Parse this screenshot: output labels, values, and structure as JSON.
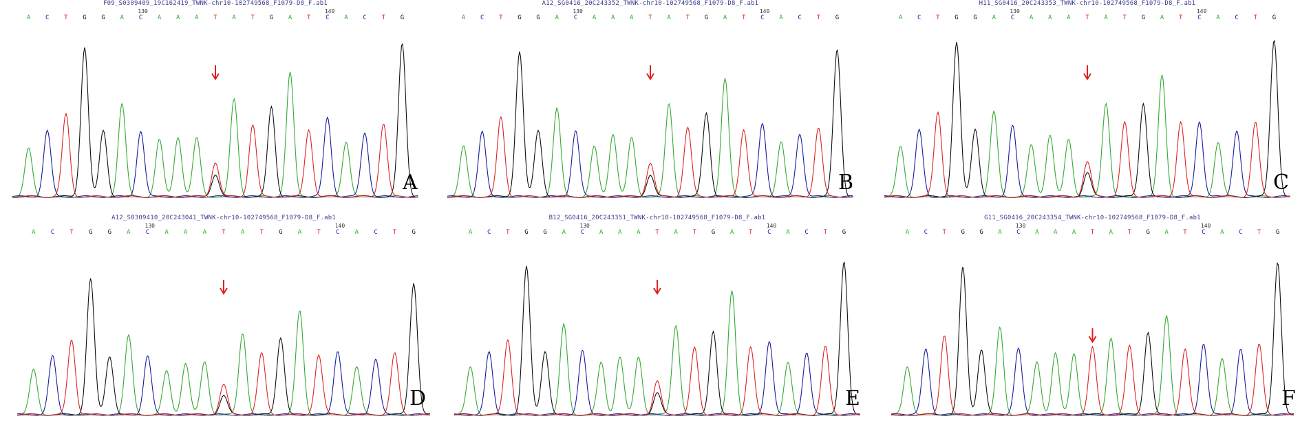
{
  "colors": {
    "A": "#33aa33",
    "C": "#1a1aa0",
    "G": "#111111",
    "T": "#dd2222",
    "arrow": "#e02020"
  },
  "tick_labels": [
    "130",
    "140"
  ],
  "chart_data": [
    {
      "type": "line",
      "title": "F09_S0309409_19C162419_TWNK-chr10-102749568_F1079-D8_F.ab1",
      "label": "A",
      "bases": [
        "A",
        "C",
        "T",
        "G",
        "G",
        "A",
        "C",
        "A",
        "A",
        "A",
        "T",
        "A",
        "T",
        "G",
        "A",
        "T",
        "C",
        "A",
        "C",
        "T",
        "G"
      ],
      "peaks": [
        {
          "b": "A",
          "h": 0.32
        },
        {
          "b": "C",
          "h": 0.44
        },
        {
          "b": "T",
          "h": 0.55
        },
        {
          "b": "G",
          "h": 1.0
        },
        {
          "b": "G",
          "h": 0.44
        },
        {
          "b": "A",
          "h": 0.62
        },
        {
          "b": "C",
          "h": 0.44
        },
        {
          "b": "A",
          "h": 0.38
        },
        {
          "b": "A",
          "h": 0.4
        },
        {
          "b": "A",
          "h": 0.39
        },
        {
          "b": "T",
          "h": 0.23,
          "g": 0.15
        },
        {
          "b": "A",
          "h": 0.65
        },
        {
          "b": "T",
          "h": 0.48
        },
        {
          "b": "G",
          "h": 0.6
        },
        {
          "b": "A",
          "h": 0.83
        },
        {
          "b": "T",
          "h": 0.45
        },
        {
          "b": "C",
          "h": 0.53
        },
        {
          "b": "A",
          "h": 0.37
        },
        {
          "b": "C",
          "h": 0.43
        },
        {
          "b": "T",
          "h": 0.49
        },
        {
          "b": "G",
          "h": 1.02
        }
      ],
      "arrow_index": 10
    },
    {
      "type": "line",
      "title": "A12_SG0416_20C243352_TWNK-chr10-102749568_F1079-D8_F.ab1",
      "label": "B",
      "bases": [
        "A",
        "C",
        "T",
        "G",
        "G",
        "A",
        "C",
        "A",
        "A",
        "A",
        "T",
        "A",
        "T",
        "G",
        "A",
        "T",
        "C",
        "A",
        "C",
        "T",
        "G"
      ],
      "peaks": [
        {
          "b": "A",
          "h": 0.34
        },
        {
          "b": "C",
          "h": 0.44
        },
        {
          "b": "T",
          "h": 0.54
        },
        {
          "b": "G",
          "h": 0.99
        },
        {
          "b": "G",
          "h": 0.45
        },
        {
          "b": "A",
          "h": 0.6
        },
        {
          "b": "C",
          "h": 0.45
        },
        {
          "b": "A",
          "h": 0.34
        },
        {
          "b": "A",
          "h": 0.43
        },
        {
          "b": "A",
          "h": 0.4
        },
        {
          "b": "T",
          "h": 0.23,
          "g": 0.15
        },
        {
          "b": "A",
          "h": 0.63
        },
        {
          "b": "T",
          "h": 0.47
        },
        {
          "b": "G",
          "h": 0.57
        },
        {
          "b": "A",
          "h": 0.8
        },
        {
          "b": "T",
          "h": 0.46
        },
        {
          "b": "C",
          "h": 0.5
        },
        {
          "b": "A",
          "h": 0.38
        },
        {
          "b": "C",
          "h": 0.43
        },
        {
          "b": "T",
          "h": 0.47
        },
        {
          "b": "G",
          "h": 1.0
        }
      ],
      "arrow_index": 10
    },
    {
      "type": "line",
      "title": "H11_SG0416_20C243353_TWNK-chr10-102749568_F1079-D8_F.ab1",
      "label": "C",
      "bases": [
        "A",
        "C",
        "T",
        "G",
        "G",
        "A",
        "C",
        "A",
        "A",
        "A",
        "T",
        "A",
        "T",
        "G",
        "A",
        "T",
        "C",
        "A",
        "C",
        "T",
        "G"
      ],
      "peaks": [
        {
          "b": "A",
          "h": 0.33
        },
        {
          "b": "C",
          "h": 0.44
        },
        {
          "b": "T",
          "h": 0.56
        },
        {
          "b": "G",
          "h": 1.02
        },
        {
          "b": "G",
          "h": 0.45
        },
        {
          "b": "A",
          "h": 0.56
        },
        {
          "b": "C",
          "h": 0.47
        },
        {
          "b": "A",
          "h": 0.34
        },
        {
          "b": "A",
          "h": 0.41
        },
        {
          "b": "A",
          "h": 0.38
        },
        {
          "b": "T",
          "h": 0.23,
          "g": 0.16
        },
        {
          "b": "A",
          "h": 0.62
        },
        {
          "b": "T",
          "h": 0.49
        },
        {
          "b": "G",
          "h": 0.62
        },
        {
          "b": "A",
          "h": 0.8
        },
        {
          "b": "T",
          "h": 0.5
        },
        {
          "b": "C",
          "h": 0.5
        },
        {
          "b": "A",
          "h": 0.36
        },
        {
          "b": "C",
          "h": 0.44
        },
        {
          "b": "T",
          "h": 0.49
        },
        {
          "b": "G",
          "h": 1.04
        }
      ],
      "arrow_index": 10
    },
    {
      "type": "line",
      "title": "A12_S0309410_20C243041_TWNK-chr10-102749568_F1079-D8_F.ab1",
      "label": "D",
      "bases": [
        "A",
        "C",
        "T",
        "G",
        "G",
        "A",
        "C",
        "A",
        "A",
        "A",
        "T",
        "A",
        "T",
        "G",
        "A",
        "T",
        "C",
        "A",
        "C",
        "T",
        "G"
      ],
      "peaks": [
        {
          "b": "A",
          "h": 0.33
        },
        {
          "b": "C",
          "h": 0.43
        },
        {
          "b": "T",
          "h": 0.55
        },
        {
          "b": "G",
          "h": 1.0
        },
        {
          "b": "G",
          "h": 0.43
        },
        {
          "b": "A",
          "h": 0.58
        },
        {
          "b": "C",
          "h": 0.43
        },
        {
          "b": "A",
          "h": 0.32
        },
        {
          "b": "A",
          "h": 0.38
        },
        {
          "b": "A",
          "h": 0.39
        },
        {
          "b": "T",
          "h": 0.22,
          "g": 0.14
        },
        {
          "b": "A",
          "h": 0.6
        },
        {
          "b": "T",
          "h": 0.45
        },
        {
          "b": "G",
          "h": 0.57
        },
        {
          "b": "A",
          "h": 0.76
        },
        {
          "b": "T",
          "h": 0.44
        },
        {
          "b": "C",
          "h": 0.47
        },
        {
          "b": "A",
          "h": 0.35
        },
        {
          "b": "C",
          "h": 0.41
        },
        {
          "b": "T",
          "h": 0.45
        },
        {
          "b": "G",
          "h": 0.97
        }
      ],
      "arrow_index": 10
    },
    {
      "type": "line",
      "title": "B12_SG0416_20C243351_TWNK-chr10-102749568_F1079-D8_F.ab1",
      "label": "E",
      "bases": [
        "A",
        "C",
        "T",
        "G",
        "G",
        "A",
        "C",
        "A",
        "A",
        "A",
        "T",
        "A",
        "T",
        "G",
        "A",
        "T",
        "C",
        "A",
        "C",
        "T",
        "G"
      ],
      "peaks": [
        {
          "b": "A",
          "h": 0.33
        },
        {
          "b": "C",
          "h": 0.43
        },
        {
          "b": "T",
          "h": 0.52
        },
        {
          "b": "G",
          "h": 1.02
        },
        {
          "b": "G",
          "h": 0.44
        },
        {
          "b": "A",
          "h": 0.62
        },
        {
          "b": "C",
          "h": 0.44
        },
        {
          "b": "A",
          "h": 0.36
        },
        {
          "b": "A",
          "h": 0.4
        },
        {
          "b": "A",
          "h": 0.4
        },
        {
          "b": "T",
          "h": 0.23,
          "g": 0.15
        },
        {
          "b": "A",
          "h": 0.62
        },
        {
          "b": "T",
          "h": 0.46
        },
        {
          "b": "G",
          "h": 0.58
        },
        {
          "b": "A",
          "h": 0.85
        },
        {
          "b": "T",
          "h": 0.47
        },
        {
          "b": "C",
          "h": 0.51
        },
        {
          "b": "A",
          "h": 0.36
        },
        {
          "b": "C",
          "h": 0.43
        },
        {
          "b": "T",
          "h": 0.47
        },
        {
          "b": "G",
          "h": 1.06
        }
      ],
      "arrow_index": 10
    },
    {
      "type": "line",
      "title": "G11_SG0416_20C243354_TWNK-chr10-102749568_F1079-D8_F.ab1",
      "label": "F",
      "bases": [
        "A",
        "C",
        "T",
        "G",
        "G",
        "A",
        "C",
        "A",
        "A",
        "A",
        "T",
        "A",
        "T",
        "G",
        "A",
        "T",
        "C",
        "A",
        "C",
        "T",
        "G"
      ],
      "peaks": [
        {
          "b": "A",
          "h": 0.34
        },
        {
          "b": "C",
          "h": 0.46
        },
        {
          "b": "T",
          "h": 0.56
        },
        {
          "b": "G",
          "h": 1.03
        },
        {
          "b": "G",
          "h": 0.46
        },
        {
          "b": "A",
          "h": 0.61
        },
        {
          "b": "C",
          "h": 0.46
        },
        {
          "b": "A",
          "h": 0.37
        },
        {
          "b": "A",
          "h": 0.43
        },
        {
          "b": "A",
          "h": 0.43
        },
        {
          "b": "T",
          "h": 0.47
        },
        {
          "b": "A",
          "h": 0.54
        },
        {
          "b": "T",
          "h": 0.48
        },
        {
          "b": "G",
          "h": 0.58
        },
        {
          "b": "A",
          "h": 0.69
        },
        {
          "b": "T",
          "h": 0.46
        },
        {
          "b": "C",
          "h": 0.5
        },
        {
          "b": "A",
          "h": 0.39
        },
        {
          "b": "C",
          "h": 0.46
        },
        {
          "b": "T",
          "h": 0.49
        },
        {
          "b": "G",
          "h": 1.07
        }
      ],
      "arrow_index": 10
    }
  ]
}
